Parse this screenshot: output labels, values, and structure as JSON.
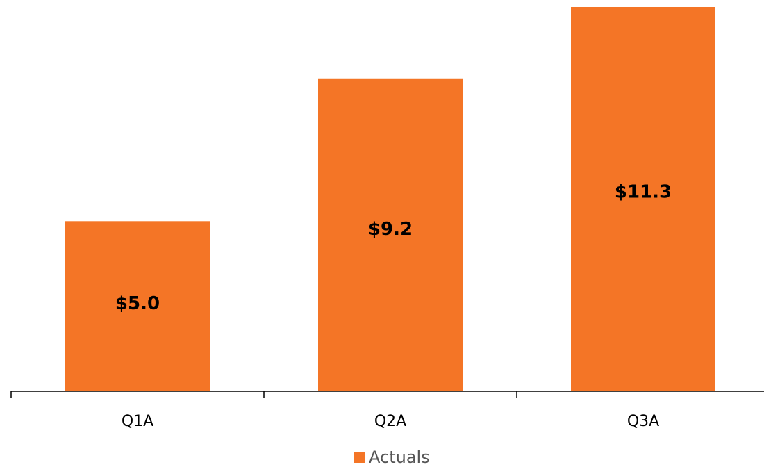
{
  "chart_data": {
    "type": "bar",
    "categories": [
      "Q1A",
      "Q2A",
      "Q3A"
    ],
    "series": [
      {
        "name": "Actuals",
        "values": [
          5.0,
          9.2,
          11.3
        ],
        "labels": [
          "$5.0",
          "$9.2",
          "$11.3"
        ],
        "color": "#F47526"
      }
    ],
    "ylim": [
      0,
      11.3
    ],
    "grid": false,
    "legend_position": "bottom-center",
    "data_label_position": "center-of-bar",
    "axis_color": "#000000"
  }
}
